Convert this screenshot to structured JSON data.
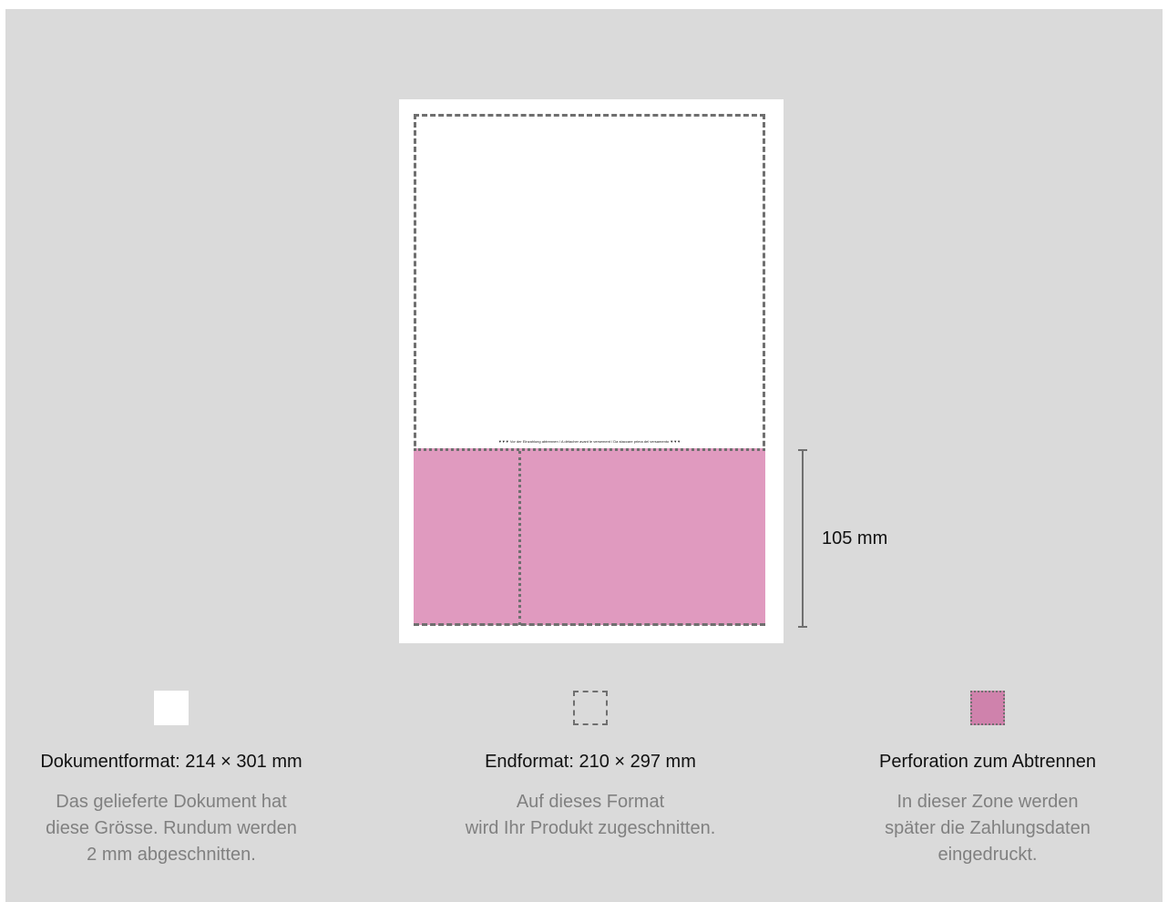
{
  "diagram": {
    "detach_note": "▼▼▼ Vor der Einzahlung abtrennen / A détacher avant le versement / Da staccare prima del versamento ▼▼▼",
    "dimension_label": "105 mm"
  },
  "legend": [
    {
      "title": "Dokumentformat: 214 × 301 mm",
      "desc_lines": [
        "Das gelieferte Dokument hat",
        "diese Grösse. Rundum werden",
        "2 mm abgeschnitten."
      ]
    },
    {
      "title": "Endformat: 210 × 297 mm",
      "desc_lines": [
        "Auf dieses Format",
        "wird Ihr Produkt zugeschnitten."
      ]
    },
    {
      "title": "Perforation zum Abtrennen",
      "desc_lines": [
        "In dieser Zone werden",
        "später die Zahlungsdaten",
        "eingedruckt."
      ]
    }
  ],
  "colors": {
    "background": "#dadada",
    "sheet": "#ffffff",
    "payment_slip": "#e09abf",
    "perforation_swatch": "#cf82ac",
    "line": "#6f6f6f"
  }
}
